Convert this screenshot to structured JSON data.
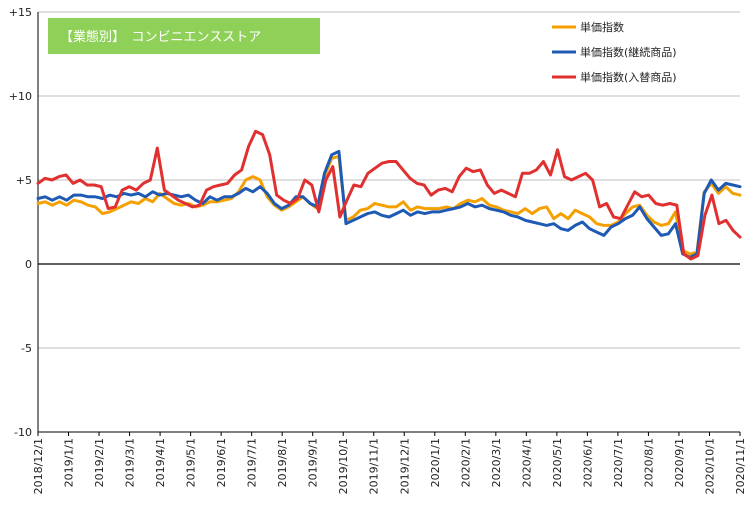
{
  "chart_data": {
    "type": "line",
    "badge": "【業態別】　コンビニエンスストア",
    "ylim": [
      -10,
      15
    ],
    "y_ticks": [
      -10,
      -5,
      0,
      5,
      10,
      15
    ],
    "y_tick_labels": [
      "-10",
      "-5",
      "0",
      "+5",
      "+10",
      "+15"
    ],
    "x_tick_labels": [
      "2018/12/1",
      "2019/1/1",
      "2019/2/1",
      "2019/3/1",
      "2019/4/1",
      "2019/5/1",
      "2019/6/1",
      "2019/7/1",
      "2019/8/1",
      "2019/9/1",
      "2019/10/1",
      "2019/11/1",
      "2019/12/1",
      "2020/1/1",
      "2020/2/1",
      "2020/3/1",
      "2020/4/1",
      "2020/5/1",
      "2020/6/1",
      "2020/7/1",
      "2020/8/1",
      "2020/9/1",
      "2020/10/1",
      "2020/11/1"
    ],
    "grid": true,
    "legend_position": "top-right",
    "series": [
      {
        "name": "単価指数",
        "color": "#F5A000",
        "values": [
          3.6,
          3.7,
          3.5,
          3.7,
          3.5,
          3.8,
          3.7,
          3.5,
          3.4,
          3.0,
          3.1,
          3.3,
          3.5,
          3.7,
          3.6,
          3.9,
          3.7,
          4.2,
          3.9,
          3.6,
          3.5,
          3.6,
          3.4,
          3.5,
          3.7,
          3.7,
          3.8,
          3.9,
          4.3,
          5.0,
          5.2,
          5.0,
          4.0,
          3.5,
          3.2,
          3.4,
          3.7,
          4.0,
          3.6,
          3.3,
          5.2,
          6.3,
          6.4,
          2.6,
          2.8,
          3.2,
          3.3,
          3.6,
          3.5,
          3.4,
          3.4,
          3.7,
          3.2,
          3.4,
          3.3,
          3.3,
          3.3,
          3.4,
          3.3,
          3.6,
          3.8,
          3.7,
          3.9,
          3.5,
          3.4,
          3.2,
          3.1,
          3.0,
          3.3,
          3.0,
          3.3,
          3.4,
          2.7,
          3.0,
          2.7,
          3.2,
          3.0,
          2.8,
          2.4,
          2.3,
          2.3,
          2.5,
          3.0,
          3.4,
          3.5,
          2.9,
          2.5,
          2.3,
          2.4,
          3.1,
          0.8,
          0.6,
          0.7,
          4.3,
          4.8,
          4.2,
          4.6,
          4.2,
          4.1
        ],
        "label_index": 0
      },
      {
        "name": "単価指数(継続商品)",
        "color": "#1E5AB4",
        "values": [
          3.9,
          4.0,
          3.8,
          4.0,
          3.8,
          4.1,
          4.1,
          4.0,
          4.0,
          3.9,
          4.1,
          4.0,
          4.2,
          4.1,
          4.2,
          4.0,
          4.3,
          4.1,
          4.2,
          4.1,
          4.0,
          4.1,
          3.8,
          3.6,
          4.0,
          3.8,
          4.0,
          4.0,
          4.2,
          4.5,
          4.3,
          4.6,
          4.2,
          3.6,
          3.3,
          3.5,
          4.0,
          4.0,
          3.6,
          3.4,
          5.4,
          6.5,
          6.7,
          2.4,
          2.6,
          2.8,
          3.0,
          3.1,
          2.9,
          2.8,
          3.0,
          3.2,
          2.9,
          3.1,
          3.0,
          3.1,
          3.1,
          3.2,
          3.3,
          3.4,
          3.6,
          3.4,
          3.5,
          3.3,
          3.2,
          3.1,
          2.9,
          2.8,
          2.6,
          2.5,
          2.4,
          2.3,
          2.4,
          2.1,
          2.0,
          2.3,
          2.5,
          2.1,
          1.9,
          1.7,
          2.2,
          2.4,
          2.7,
          2.9,
          3.4,
          2.7,
          2.2,
          1.7,
          1.8,
          2.4,
          0.6,
          0.4,
          0.6,
          4.2,
          5.0,
          4.4,
          4.8,
          4.7,
          4.6
        ],
        "label_index": 1
      },
      {
        "name": "単価指数(入替商品)",
        "color": "#E03030",
        "values": [
          4.8,
          5.1,
          5.0,
          5.2,
          5.3,
          4.8,
          5.0,
          4.7,
          4.7,
          4.6,
          3.3,
          3.4,
          4.4,
          4.6,
          4.4,
          4.8,
          5.0,
          6.9,
          4.4,
          4.1,
          3.8,
          3.6,
          3.4,
          3.5,
          4.4,
          4.6,
          4.7,
          4.8,
          5.3,
          5.6,
          7.0,
          7.9,
          7.7,
          6.5,
          4.1,
          3.8,
          3.6,
          3.9,
          5.0,
          4.7,
          3.1,
          5.0,
          5.8,
          2.8,
          3.8,
          4.7,
          4.6,
          5.4,
          5.7,
          6.0,
          6.1,
          6.1,
          5.6,
          5.1,
          4.8,
          4.7,
          4.1,
          4.4,
          4.5,
          4.3,
          5.2,
          5.7,
          5.5,
          5.6,
          4.7,
          4.2,
          4.4,
          4.2,
          4.0,
          5.4,
          5.4,
          5.6,
          6.1,
          5.3,
          6.8,
          5.2,
          5.0,
          5.2,
          5.4,
          5.0,
          3.4,
          3.6,
          2.8,
          2.7,
          3.5,
          4.3,
          4.0,
          4.1,
          3.6,
          3.5,
          3.6,
          3.5,
          0.6,
          0.3,
          0.5,
          2.9,
          4.1,
          2.4,
          2.6,
          2.0,
          1.6
        ],
        "label_index": 2
      }
    ]
  }
}
